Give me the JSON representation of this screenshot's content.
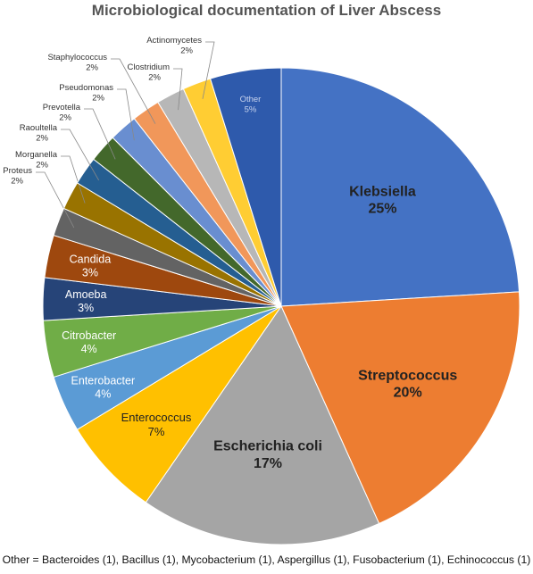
{
  "chart_data": {
    "type": "pie",
    "title": "Microbiological documentation of Liver Abscess",
    "footnote": "Other = Bacteroides (1), Bacillus  (1), Mycobacterium (1), Aspergillus (1), Fusobacterium (1), Echinococcus (1)",
    "slices": [
      {
        "name": "Klebsiella",
        "label": "25%",
        "value": 25,
        "color": "#4472C4"
      },
      {
        "name": "Streptococcus",
        "label": "20%",
        "value": 20,
        "color": "#ED7D31"
      },
      {
        "name": "Escherichia coli",
        "label": "17%",
        "value": 17,
        "color": "#A5A5A5"
      },
      {
        "name": "Enterococcus",
        "label": "7%",
        "value": 7,
        "color": "#FFC000"
      },
      {
        "name": "Enterobacter",
        "label": "4%",
        "value": 4,
        "color": "#5B9BD5"
      },
      {
        "name": "Citrobacter",
        "label": "4%",
        "value": 4,
        "color": "#70AD47"
      },
      {
        "name": "Amoeba",
        "label": "3%",
        "value": 3,
        "color": "#264478"
      },
      {
        "name": "Candida",
        "label": "3%",
        "value": 3,
        "color": "#9E480E"
      },
      {
        "name": "Proteus",
        "label": "2%",
        "value": 2,
        "color": "#636363"
      },
      {
        "name": "Morganella",
        "label": "2%",
        "value": 2,
        "color": "#997300"
      },
      {
        "name": "Raoultella",
        "label": "2%",
        "value": 2,
        "color": "#255E91"
      },
      {
        "name": "Prevotella",
        "label": "2%",
        "value": 2,
        "color": "#43682B"
      },
      {
        "name": "Pseudomonas",
        "label": "2%",
        "value": 2,
        "color": "#698ED0"
      },
      {
        "name": "Staphylococcus",
        "label": "2%",
        "value": 2,
        "color": "#F1975A"
      },
      {
        "name": "Clostridium",
        "label": "2%",
        "value": 2,
        "color": "#B7B7B7"
      },
      {
        "name": "Actinomycetes",
        "label": "2%",
        "value": 2,
        "color": "#FFCD33"
      },
      {
        "name": "Other",
        "label": "5%",
        "value": 5,
        "color": "#2E5AAC"
      }
    ]
  }
}
